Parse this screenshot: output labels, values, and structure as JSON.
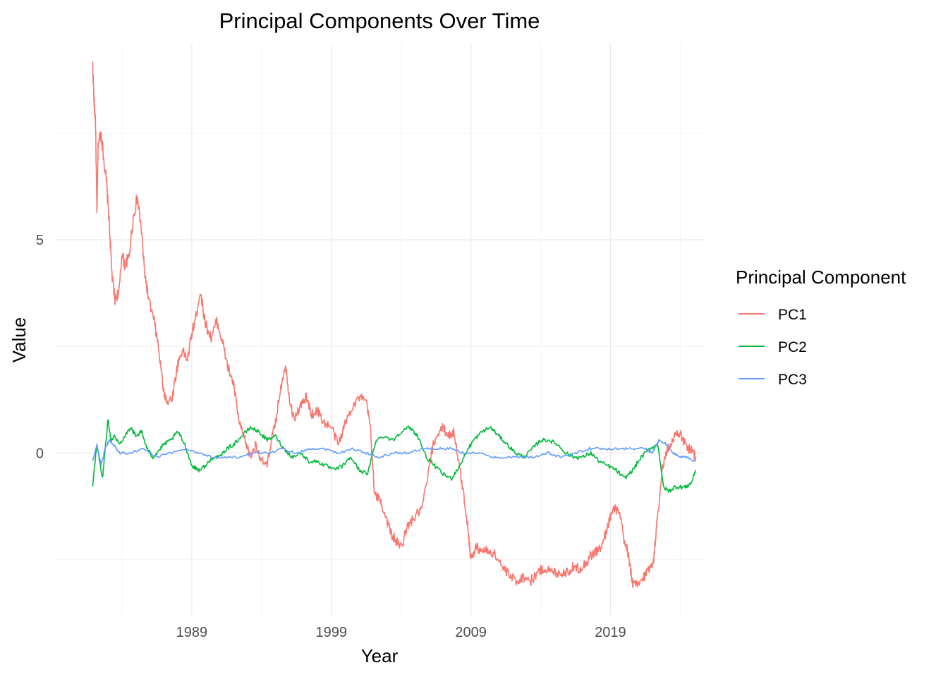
{
  "chart_data": {
    "type": "line",
    "title": "Principal Components Over Time",
    "xlabel": "Year",
    "ylabel": "Value",
    "xlim": [
      1979.2,
      2025.7
    ],
    "ylim": [
      -3.8,
      9.6
    ],
    "x_ticks": [
      1989,
      1999,
      2009,
      2019
    ],
    "x_tick_labels": [
      "1989",
      "1999",
      "2009",
      "2019"
    ],
    "x_minor_ticks": [
      1984,
      1994,
      2004,
      2014,
      2024
    ],
    "y_ticks": [
      0,
      5
    ],
    "y_tick_labels": [
      "0",
      "5"
    ],
    "y_minor_ticks": [
      -2.5,
      2.5,
      7.5
    ],
    "grid": true,
    "legend": {
      "title": "Principal Component",
      "position": "right"
    },
    "series": [
      {
        "name": "PC1",
        "color": "#F8766D",
        "x": [
          1981.9,
          1982.0,
          1982.1,
          1982.2,
          1982.3,
          1982.5,
          1982.7,
          1982.9,
          1983.1,
          1983.3,
          1983.5,
          1983.8,
          1984.0,
          1984.2,
          1984.5,
          1984.8,
          1985.1,
          1985.4,
          1985.6,
          1985.9,
          1986.3,
          1986.6,
          1987.0,
          1987.3,
          1987.6,
          1988.0,
          1988.3,
          1988.7,
          1989.0,
          1989.3,
          1989.6,
          1990.0,
          1990.4,
          1990.8,
          1991.2,
          1991.6,
          1992.0,
          1992.4,
          1992.8,
          1993.2,
          1993.6,
          1994.0,
          1994.4,
          1994.7,
          1995.0,
          1995.3,
          1995.7,
          1996.0,
          1996.3,
          1996.8,
          1997.2,
          1997.6,
          1998.0,
          1998.5,
          1999.0,
          1999.5,
          2000.0,
          2000.5,
          2001.0,
          2001.5,
          2001.8,
          2002.1,
          2002.5,
          2002.9,
          2003.3,
          2003.7,
          2004.0,
          2004.5,
          2005.0,
          2005.5,
          2006.0,
          2006.3,
          2006.7,
          2007.0,
          2007.4,
          2007.8,
          2008.2,
          2008.5,
          2008.8,
          2009.0,
          2009.4,
          2009.8,
          2010.3,
          2010.8,
          2011.3,
          2011.8,
          2012.3,
          2012.8,
          2013.3,
          2013.8,
          2014.3,
          2014.8,
          2015.3,
          2015.8,
          2016.3,
          2016.8,
          2017.2,
          2017.6,
          2018.0,
          2018.4,
          2018.8,
          2019.1,
          2019.4,
          2019.7,
          2020.0,
          2020.3,
          2020.6,
          2021.0,
          2021.4,
          2021.8,
          2022.1,
          2022.4,
          2022.7,
          2023.0,
          2023.3,
          2023.6,
          2023.9,
          2024.2,
          2024.5,
          2024.8,
          2025.1
        ],
        "y": [
          9.1,
          8.2,
          7.8,
          5.6,
          7.3,
          7.5,
          6.9,
          6.3,
          5.3,
          4.1,
          3.6,
          3.8,
          4.7,
          4.4,
          4.6,
          5.5,
          6.0,
          5.2,
          4.3,
          3.6,
          3.1,
          2.5,
          1.4,
          1.2,
          1.3,
          2.1,
          2.4,
          2.2,
          2.8,
          3.2,
          3.8,
          3.0,
          2.7,
          3.1,
          2.6,
          2.0,
          1.6,
          0.7,
          0.3,
          -0.1,
          0.2,
          -0.2,
          -0.3,
          0.3,
          0.7,
          1.4,
          2.1,
          1.3,
          0.8,
          1.1,
          1.3,
          0.9,
          1.0,
          0.7,
          0.6,
          0.2,
          0.7,
          1.1,
          1.3,
          1.2,
          0.6,
          -1.0,
          -1.1,
          -1.5,
          -1.9,
          -2.1,
          -2.2,
          -1.7,
          -1.5,
          -1.3,
          -0.4,
          0.2,
          0.5,
          0.6,
          0.4,
          0.5,
          -0.4,
          -1.0,
          -1.8,
          -2.5,
          -2.2,
          -2.3,
          -2.3,
          -2.4,
          -2.7,
          -2.9,
          -3.0,
          -2.9,
          -3.0,
          -2.8,
          -2.7,
          -2.8,
          -2.8,
          -2.8,
          -2.7,
          -2.7,
          -2.6,
          -2.4,
          -2.3,
          -2.2,
          -1.7,
          -1.4,
          -1.3,
          -1.5,
          -2.1,
          -2.4,
          -3.1,
          -3.1,
          -2.9,
          -2.7,
          -2.5,
          -1.4,
          -0.4,
          0.0,
          0.2,
          0.4,
          0.5,
          0.3,
          0.1,
          0.1,
          -0.1
        ]
      },
      {
        "name": "PC2",
        "color": "#00BA38",
        "x": [
          1981.9,
          1982.0,
          1982.2,
          1982.4,
          1982.6,
          1982.8,
          1983.0,
          1983.2,
          1983.5,
          1983.8,
          1984.2,
          1984.6,
          1985.0,
          1985.4,
          1985.8,
          1986.2,
          1986.5,
          1987.0,
          1987.5,
          1988.0,
          1988.5,
          1989.0,
          1989.5,
          1990.0,
          1990.5,
          1991.0,
          1991.5,
          1992.0,
          1992.6,
          1993.2,
          1993.8,
          1994.4,
          1995.0,
          1995.6,
          1996.2,
          1996.8,
          1997.4,
          1998.0,
          1998.6,
          1999.2,
          1999.8,
          2000.4,
          2001.0,
          2001.6,
          2002.2,
          2002.8,
          2003.4,
          2004.0,
          2004.6,
          2005.2,
          2005.8,
          2006.4,
          2007.0,
          2007.6,
          2008.2,
          2008.8,
          2009.2,
          2009.8,
          2010.4,
          2011.0,
          2011.6,
          2012.2,
          2012.8,
          2013.4,
          2014.0,
          2014.6,
          2015.2,
          2015.8,
          2016.4,
          2017.0,
          2017.6,
          2018.2,
          2018.8,
          2019.4,
          2020.0,
          2020.6,
          2021.2,
          2021.8,
          2022.4,
          2022.8,
          2023.2,
          2023.6,
          2024.0,
          2024.4,
          2024.8,
          2025.1
        ],
        "y": [
          -0.8,
          -0.4,
          0.2,
          -0.2,
          -0.6,
          0.1,
          0.8,
          0.3,
          0.4,
          0.2,
          0.4,
          0.6,
          0.4,
          0.5,
          0.1,
          -0.1,
          0.0,
          0.2,
          0.3,
          0.5,
          0.2,
          -0.3,
          -0.4,
          -0.3,
          -0.1,
          -0.1,
          0.1,
          0.2,
          0.4,
          0.6,
          0.5,
          0.3,
          0.4,
          0.1,
          -0.1,
          0.0,
          -0.2,
          -0.2,
          -0.3,
          -0.4,
          -0.3,
          -0.1,
          -0.4,
          -0.5,
          0.3,
          0.4,
          0.3,
          0.5,
          0.6,
          0.4,
          -0.1,
          -0.3,
          -0.5,
          -0.6,
          -0.3,
          0.1,
          0.3,
          0.5,
          0.6,
          0.4,
          0.2,
          0.0,
          -0.1,
          0.1,
          0.3,
          0.3,
          0.2,
          0.0,
          -0.1,
          -0.1,
          0.0,
          -0.2,
          -0.3,
          -0.4,
          -0.6,
          -0.4,
          -0.1,
          0.1,
          0.2,
          -0.8,
          -0.9,
          -0.8,
          -0.8,
          -0.8,
          -0.7,
          -0.4
        ]
      },
      {
        "name": "PC3",
        "color": "#619CFF",
        "x": [
          1981.9,
          1982.2,
          1982.5,
          1982.8,
          1983.1,
          1983.4,
          1983.8,
          1984.5,
          1985.5,
          1986.5,
          1987.5,
          1988.5,
          1989.5,
          1990.5,
          1991.5,
          1992.5,
          1993.5,
          1994.5,
          1995.5,
          1996.5,
          1997.5,
          1998.5,
          1999.5,
          2000.5,
          2001.5,
          2002.5,
          2003.5,
          2004.5,
          2005.5,
          2006.5,
          2007.5,
          2008.5,
          2009.5,
          2010.5,
          2011.5,
          2012.5,
          2013.5,
          2014.5,
          2015.5,
          2016.5,
          2017.5,
          2018.5,
          2019.5,
          2020.5,
          2021.5,
          2022.0,
          2022.5,
          2023.0,
          2023.5,
          2024.0,
          2024.5,
          2025.1
        ],
        "y": [
          -0.2,
          0.2,
          -0.3,
          0.1,
          0.3,
          0.2,
          0.0,
          0.0,
          0.1,
          -0.1,
          0.0,
          0.1,
          0.0,
          -0.1,
          -0.1,
          -0.1,
          0.0,
          0.0,
          0.1,
          0.0,
          0.1,
          0.1,
          0.0,
          0.1,
          0.0,
          -0.1,
          0.0,
          0.0,
          0.1,
          0.1,
          0.1,
          0.0,
          0.0,
          -0.1,
          -0.1,
          -0.1,
          -0.1,
          0.0,
          -0.1,
          0.0,
          0.1,
          0.1,
          0.1,
          0.1,
          0.1,
          0.0,
          0.3,
          0.2,
          0.0,
          -0.1,
          -0.1,
          -0.2
        ]
      }
    ]
  }
}
